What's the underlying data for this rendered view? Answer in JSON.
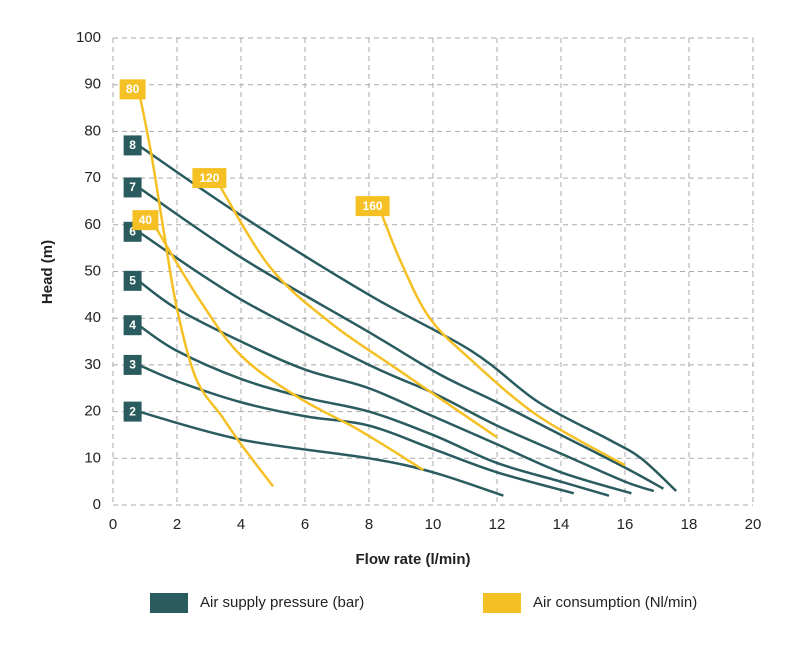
{
  "chart_data": {
    "type": "line",
    "x_label": "Flow rate (l/min)",
    "y_label": "Head (m)",
    "xlim": [
      0,
      20
    ],
    "xticks": [
      0,
      2,
      4,
      6,
      8,
      10,
      12,
      14,
      16,
      18,
      20
    ],
    "ylim": [
      0,
      100
    ],
    "yticks": [
      0,
      10,
      20,
      30,
      40,
      50,
      60,
      70,
      80,
      90,
      100
    ],
    "grid": true,
    "legend": [
      {
        "name": "Air supply pressure (bar)",
        "color": "#2a5c5f"
      },
      {
        "name": "Air consumption (Nl/min)",
        "color": "#f5c024"
      }
    ],
    "series": [
      {
        "label": "8",
        "color": "#2a5c5f",
        "x": [
          0.8,
          4,
          8,
          11.2,
          13.3,
          15.5,
          16.5,
          17.6
        ],
        "values": [
          77,
          62,
          45,
          33,
          22,
          14,
          10,
          3
        ]
      },
      {
        "label": "7",
        "color": "#2a5c5f",
        "x": [
          0.8,
          4,
          8,
          10.2,
          12,
          14,
          16,
          17.2
        ],
        "values": [
          68,
          53,
          37,
          28,
          22,
          15,
          8,
          3.5
        ]
      },
      {
        "label": "6",
        "color": "#2a5c5f",
        "x": [
          0.8,
          4,
          8,
          10,
          12,
          14,
          16,
          16.9
        ],
        "values": [
          58.5,
          44,
          30,
          24,
          17,
          11,
          5,
          3
        ]
      },
      {
        "label": "5",
        "color": "#2a5c5f",
        "x": [
          0.8,
          2,
          4,
          6,
          8,
          10,
          12,
          14,
          16.2
        ],
        "values": [
          48,
          42,
          35,
          29,
          25,
          19,
          13,
          7,
          2.5
        ]
      },
      {
        "label": "4",
        "color": "#2a5c5f",
        "x": [
          0.8,
          2,
          4,
          6,
          8,
          10,
          12,
          14,
          15.5
        ],
        "values": [
          38.5,
          33,
          27,
          23,
          20,
          15,
          9,
          5,
          2
        ]
      },
      {
        "label": "3",
        "color": "#2a5c5f",
        "x": [
          0.8,
          2,
          4,
          6,
          8,
          10,
          12,
          14.4
        ],
        "values": [
          30,
          26.5,
          22,
          19,
          17,
          12,
          7,
          2.5
        ]
      },
      {
        "label": "2",
        "color": "#2a5c5f",
        "x": [
          0.8,
          4,
          8,
          10,
          12.2
        ],
        "values": [
          20,
          14,
          10,
          7,
          2
        ]
      },
      {
        "label": "80",
        "color": "#f5c024",
        "x": [
          0.8,
          1.2,
          1.6,
          2,
          2.6,
          3.4,
          4,
          5
        ],
        "values": [
          89,
          75,
          58,
          42,
          27,
          19,
          13,
          4
        ]
      },
      {
        "label": "40",
        "color": "#f5c024",
        "x": [
          1.2,
          2.7,
          4,
          5.8,
          7.7,
          9.7
        ],
        "values": [
          61,
          44,
          32,
          23,
          16,
          7.5
        ]
      },
      {
        "label": "120",
        "color": "#f5c024",
        "x": [
          3.2,
          4.9,
          6.8,
          8.9,
          12
        ],
        "values": [
          70,
          51,
          39,
          29,
          14.5
        ]
      },
      {
        "label": "160",
        "color": "#f5c024",
        "x": [
          8.3,
          9,
          9.9,
          11.2,
          13.3,
          16
        ],
        "values": [
          64,
          52,
          40,
          31,
          19,
          8.5
        ]
      }
    ]
  }
}
